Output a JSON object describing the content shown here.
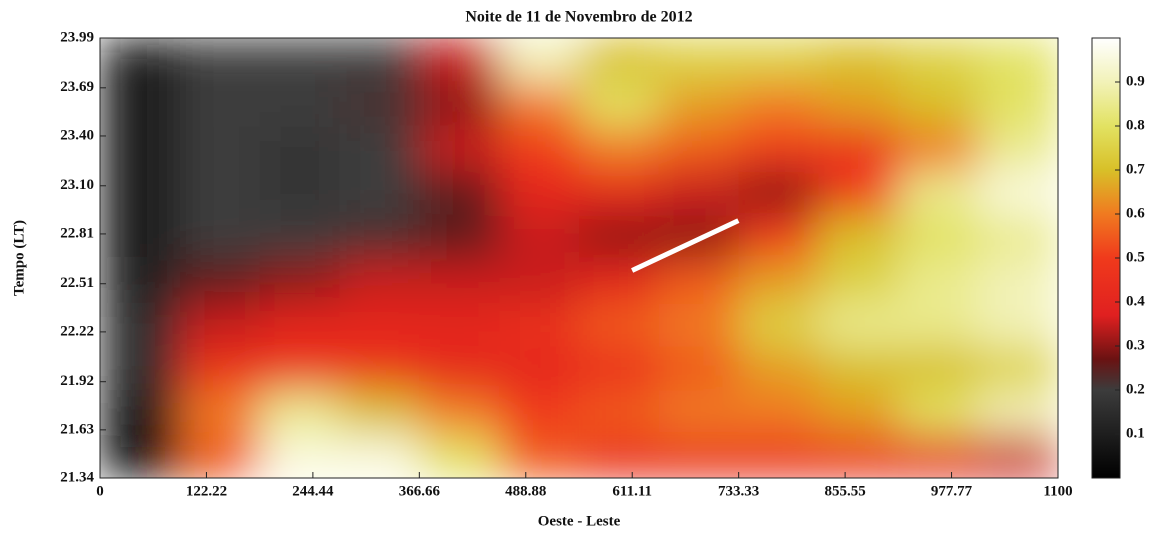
{
  "chart_data": {
    "type": "heatmap",
    "title": "Noite de 11 de Novembro de 2012",
    "xlabel": "Oeste - Leste",
    "ylabel": "Tempo (LT)",
    "xlim": [
      0,
      1100
    ],
    "ylim": [
      21.34,
      23.99
    ],
    "xticks": [
      0,
      122.22,
      244.44,
      366.66,
      488.88,
      611.11,
      733.33,
      855.55,
      977.77,
      1100
    ],
    "yticks": [
      21.34,
      21.63,
      21.92,
      22.22,
      22.51,
      22.81,
      {
        "value": 23.1,
        "label": "23.10"
      },
      {
        "value": 23.4,
        "label": "23.40"
      },
      23.69,
      23.99
    ],
    "x_bins": [
      0,
      91.67,
      183.33,
      275,
      366.67,
      458.33,
      550,
      641.67,
      733.33,
      825,
      916.67,
      1008.33,
      1100
    ],
    "y_bins": [
      21.34,
      21.605,
      21.87,
      22.135,
      22.4,
      22.665,
      22.93,
      23.195,
      23.46,
      23.725,
      23.99
    ],
    "values": [
      [
        0.05,
        0.55,
        0.95,
        0.95,
        0.8,
        0.55,
        0.45,
        0.45,
        0.45,
        0.45,
        0.4,
        0.35
      ],
      [
        0.1,
        0.6,
        0.85,
        0.7,
        0.6,
        0.5,
        0.55,
        0.6,
        0.6,
        0.65,
        0.8,
        0.9
      ],
      [
        0.15,
        0.45,
        0.45,
        0.45,
        0.4,
        0.4,
        0.45,
        0.55,
        0.65,
        0.7,
        0.7,
        0.75
      ],
      [
        0.15,
        0.35,
        0.4,
        0.4,
        0.4,
        0.45,
        0.55,
        0.6,
        0.75,
        0.85,
        0.85,
        0.9
      ],
      [
        0.12,
        0.25,
        0.3,
        0.35,
        0.35,
        0.35,
        0.4,
        0.55,
        0.65,
        0.75,
        0.85,
        0.9
      ],
      [
        0.1,
        0.2,
        0.2,
        0.22,
        0.25,
        0.35,
        0.3,
        0.3,
        0.5,
        0.7,
        0.8,
        0.85
      ],
      [
        0.1,
        0.2,
        0.18,
        0.2,
        0.25,
        0.4,
        0.4,
        0.35,
        0.3,
        0.5,
        0.85,
        0.95
      ],
      [
        0.1,
        0.2,
        0.18,
        0.2,
        0.35,
        0.5,
        0.6,
        0.55,
        0.5,
        0.45,
        0.6,
        0.85
      ],
      [
        0.1,
        0.2,
        0.2,
        0.22,
        0.3,
        0.6,
        0.8,
        0.65,
        0.6,
        0.65,
        0.7,
        0.8
      ],
      [
        0.1,
        0.2,
        0.2,
        0.2,
        0.35,
        0.9,
        0.7,
        0.75,
        0.75,
        0.7,
        0.75,
        0.8
      ]
    ],
    "clim": [
      0,
      1
    ],
    "cticks": [
      0.1,
      0.2,
      0.3,
      0.4,
      0.5,
      0.6,
      0.7,
      0.8,
      0.9
    ],
    "colormap": [
      [
        0,
        "#000000"
      ],
      [
        0.2,
        "#3c3c3c"
      ],
      [
        0.27,
        "#6a1212"
      ],
      [
        0.37,
        "#e02020"
      ],
      [
        0.5,
        "#f03a1c"
      ],
      [
        0.6,
        "#f07a20"
      ],
      [
        0.7,
        "#d8c028"
      ],
      [
        0.8,
        "#e2e262"
      ],
      [
        0.9,
        "#f2f2b8"
      ],
      [
        1,
        "#ffffff"
      ]
    ],
    "annotation_line": {
      "x": [
        611,
        733
      ],
      "y": [
        22.59,
        22.89
      ],
      "color": "#ffffff"
    }
  }
}
